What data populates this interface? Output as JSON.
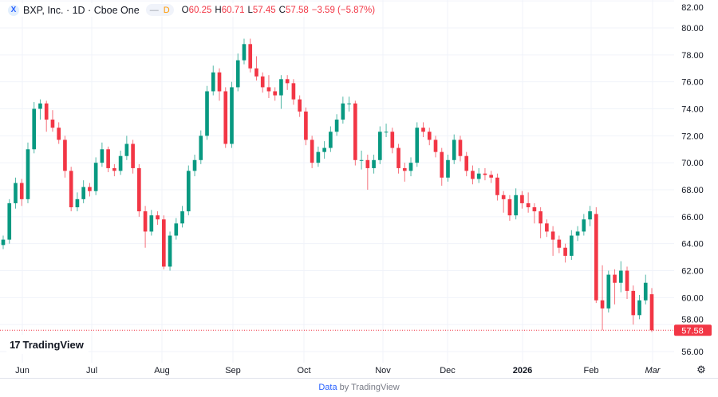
{
  "header": {
    "symbol_icon": "X",
    "title": "BXP, Inc. · 1D · Cboe One",
    "indicator": "D",
    "open_label": "O",
    "open": "60.25",
    "high_label": "H",
    "high": "60.71",
    "low_label": "L",
    "low": "57.45",
    "close_label": "C",
    "close": "57.58",
    "change": "−3.59 (−5.87%)"
  },
  "logo_text": "TradingView",
  "credit": {
    "link": "Data",
    "rest": " by TradingView"
  },
  "settings_icon": "gear-icon",
  "colors": {
    "up": "#089981",
    "down": "#f23645",
    "grid": "#f0f3fa",
    "last_price": "#f23645"
  },
  "chart_data": {
    "type": "candlestick",
    "ylim": [
      55,
      82
    ],
    "y_ticks": [
      "56.00",
      "58.00",
      "60.00",
      "62.00",
      "64.00",
      "66.00",
      "68.00",
      "70.00",
      "72.00",
      "74.00",
      "76.00",
      "78.00",
      "80.00",
      "82.00"
    ],
    "x_ticks": [
      "Jun",
      "Jul",
      "Aug",
      "Sep",
      "Oct",
      "Nov",
      "Dec",
      "2026",
      "Feb",
      "Mar"
    ],
    "last_price": 57.58,
    "last_price_label": "57.58",
    "grid": true,
    "ohlc": [
      [
        63.9,
        64.6,
        63.6,
        64.3
      ],
      [
        64.3,
        67.3,
        64.0,
        67.0
      ],
      [
        67.0,
        68.9,
        66.6,
        68.5
      ],
      [
        68.5,
        68.8,
        66.8,
        67.3
      ],
      [
        67.3,
        71.5,
        67.0,
        71.0
      ],
      [
        71.0,
        74.5,
        70.7,
        74.0
      ],
      [
        74.0,
        74.7,
        73.2,
        74.4
      ],
      [
        74.4,
        74.6,
        72.3,
        73.2
      ],
      [
        73.2,
        73.9,
        72.3,
        72.6
      ],
      [
        72.6,
        73.0,
        71.4,
        71.7
      ],
      [
        71.7,
        72.0,
        68.9,
        69.4
      ],
      [
        69.4,
        69.7,
        66.4,
        66.7
      ],
      [
        66.7,
        67.8,
        66.4,
        67.3
      ],
      [
        67.3,
        68.7,
        67.0,
        68.2
      ],
      [
        68.2,
        68.5,
        67.5,
        67.9
      ],
      [
        67.9,
        70.4,
        67.6,
        70.0
      ],
      [
        70.0,
        71.5,
        69.7,
        71.0
      ],
      [
        71.0,
        71.2,
        69.3,
        69.6
      ],
      [
        69.6,
        69.9,
        69.0,
        69.4
      ],
      [
        69.4,
        70.9,
        69.1,
        70.5
      ],
      [
        70.5,
        72.0,
        70.2,
        71.4
      ],
      [
        71.4,
        71.7,
        69.2,
        69.6
      ],
      [
        69.6,
        69.9,
        66.0,
        66.4
      ],
      [
        66.4,
        66.8,
        63.7,
        64.9
      ],
      [
        64.9,
        66.5,
        64.6,
        66.1
      ],
      [
        66.1,
        66.4,
        65.4,
        65.8
      ],
      [
        65.8,
        66.1,
        62.1,
        62.3
      ],
      [
        62.3,
        64.9,
        62.0,
        64.6
      ],
      [
        64.6,
        65.9,
        64.3,
        65.5
      ],
      [
        65.5,
        66.8,
        65.2,
        66.4
      ],
      [
        66.4,
        69.8,
        66.1,
        69.4
      ],
      [
        69.4,
        70.6,
        69.0,
        70.2
      ],
      [
        70.2,
        72.4,
        69.9,
        72.0
      ],
      [
        72.0,
        75.7,
        71.7,
        75.3
      ],
      [
        75.3,
        77.2,
        75.0,
        76.7
      ],
      [
        76.7,
        77.0,
        74.6,
        75.3
      ],
      [
        75.3,
        75.6,
        71.1,
        71.4
      ],
      [
        71.4,
        76.0,
        71.1,
        75.6
      ],
      [
        75.6,
        78.1,
        75.3,
        77.6
      ],
      [
        77.6,
        79.2,
        77.3,
        78.8
      ],
      [
        78.8,
        79.2,
        76.7,
        77.0
      ],
      [
        77.0,
        77.9,
        76.1,
        76.4
      ],
      [
        76.4,
        76.7,
        75.2,
        75.6
      ],
      [
        75.6,
        76.5,
        74.8,
        75.3
      ],
      [
        75.3,
        75.6,
        74.6,
        75.0
      ],
      [
        75.0,
        76.5,
        74.0,
        76.2
      ],
      [
        76.2,
        76.5,
        75.4,
        75.9
      ],
      [
        75.9,
        76.2,
        74.3,
        74.7
      ],
      [
        74.7,
        75.0,
        73.4,
        73.8
      ],
      [
        73.8,
        74.1,
        71.3,
        71.7
      ],
      [
        71.7,
        72.0,
        69.6,
        70.0
      ],
      [
        70.0,
        71.2,
        69.7,
        70.8
      ],
      [
        70.8,
        71.6,
        70.3,
        71.1
      ],
      [
        71.1,
        72.7,
        70.8,
        72.3
      ],
      [
        72.3,
        73.6,
        72.0,
        73.2
      ],
      [
        73.2,
        74.9,
        72.9,
        74.4
      ],
      [
        74.4,
        74.9,
        73.8,
        74.4
      ],
      [
        74.4,
        74.6,
        69.8,
        70.2
      ],
      [
        70.2,
        70.9,
        69.5,
        70.2
      ],
      [
        70.2,
        70.6,
        68.0,
        69.6
      ],
      [
        69.6,
        70.6,
        69.2,
        70.2
      ],
      [
        70.2,
        72.7,
        69.9,
        72.3
      ],
      [
        72.3,
        72.9,
        71.9,
        72.3
      ],
      [
        72.3,
        72.6,
        70.7,
        71.1
      ],
      [
        71.1,
        71.4,
        69.2,
        69.6
      ],
      [
        69.6,
        70.0,
        68.6,
        69.4
      ],
      [
        69.4,
        70.4,
        69.0,
        70.0
      ],
      [
        70.0,
        73.0,
        69.7,
        72.6
      ],
      [
        72.6,
        73.0,
        71.9,
        72.3
      ],
      [
        72.3,
        72.6,
        71.3,
        71.7
      ],
      [
        71.7,
        72.0,
        70.4,
        70.8
      ],
      [
        70.8,
        71.1,
        68.3,
        68.9
      ],
      [
        68.9,
        70.6,
        68.6,
        70.2
      ],
      [
        70.2,
        72.1,
        69.9,
        71.7
      ],
      [
        71.7,
        72.0,
        70.1,
        70.5
      ],
      [
        70.5,
        70.8,
        69.0,
        69.4
      ],
      [
        69.4,
        69.8,
        68.4,
        68.8
      ],
      [
        68.8,
        69.6,
        68.5,
        69.2
      ],
      [
        69.2,
        69.6,
        68.7,
        69.1
      ],
      [
        69.1,
        69.4,
        68.5,
        68.9
      ],
      [
        68.9,
        69.2,
        67.2,
        67.6
      ],
      [
        67.6,
        67.9,
        66.3,
        67.3
      ],
      [
        67.3,
        67.6,
        65.7,
        66.1
      ],
      [
        66.1,
        68.1,
        65.8,
        67.6
      ],
      [
        67.6,
        67.9,
        66.6,
        67.0
      ],
      [
        67.0,
        67.8,
        66.3,
        66.7
      ],
      [
        66.7,
        67.0,
        65.5,
        66.4
      ],
      [
        66.4,
        66.7,
        64.4,
        65.5
      ],
      [
        65.5,
        65.8,
        64.5,
        64.9
      ],
      [
        64.9,
        65.3,
        63.1,
        64.3
      ],
      [
        64.3,
        64.6,
        63.3,
        63.7
      ],
      [
        63.7,
        64.0,
        62.6,
        63.1
      ],
      [
        63.1,
        65.0,
        62.8,
        64.6
      ],
      [
        64.6,
        65.3,
        64.2,
        64.9
      ],
      [
        64.9,
        66.2,
        64.6,
        65.8
      ],
      [
        65.8,
        66.8,
        65.3,
        66.4
      ],
      [
        66.2,
        66.7,
        59.6,
        59.8
      ],
      [
        59.8,
        62.4,
        57.6,
        59.2
      ],
      [
        59.2,
        62.0,
        58.9,
        61.7
      ],
      [
        61.7,
        62.1,
        59.5,
        61.1
      ],
      [
        61.1,
        62.7,
        60.4,
        62.0
      ],
      [
        62.0,
        62.3,
        59.9,
        60.5
      ],
      [
        60.5,
        60.9,
        58.0,
        58.7
      ],
      [
        58.7,
        60.2,
        58.4,
        59.8
      ],
      [
        59.8,
        61.7,
        59.5,
        61.1
      ],
      [
        60.25,
        60.71,
        57.45,
        57.58
      ]
    ]
  }
}
